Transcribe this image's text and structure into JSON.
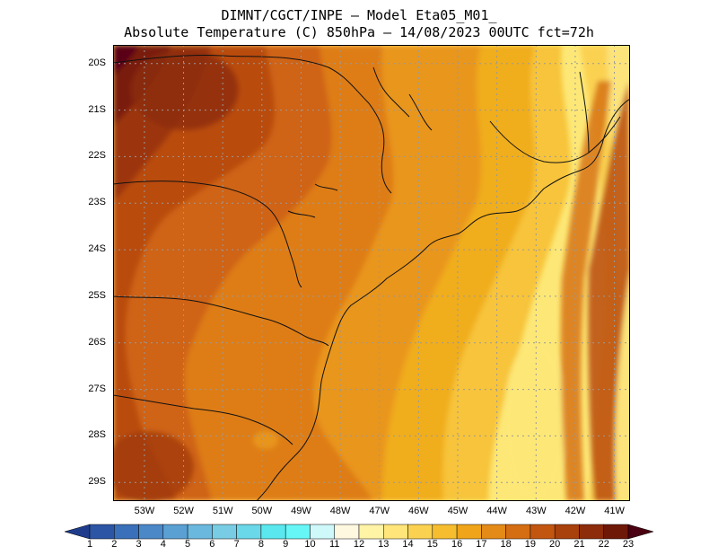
{
  "header": {
    "line1": "DIMNT/CGCT/INPE –  Model Eta05_M01_",
    "line2": "Absolute Temperature (C) 850hPa –  14/08/2023 00UTC fct=72h"
  },
  "map": {
    "lon_range": [
      -53.8,
      -40.6
    ],
    "lat_range": [
      -29.4,
      -19.6
    ],
    "lat_ticks": [
      "20S",
      "21S",
      "22S",
      "23S",
      "24S",
      "25S",
      "26S",
      "27S",
      "28S",
      "29S"
    ],
    "lat_values": [
      -20,
      -21,
      -22,
      -23,
      -24,
      -25,
      -26,
      -27,
      -28,
      -29
    ],
    "lon_ticks": [
      "53W",
      "52W",
      "51W",
      "50W",
      "49W",
      "48W",
      "47W",
      "46W",
      "45W",
      "44W",
      "43W",
      "42W",
      "41W"
    ],
    "lon_values": [
      -53,
      -52,
      -51,
      -50,
      -49,
      -48,
      -47,
      -46,
      -45,
      -44,
      -43,
      -42,
      -41
    ]
  },
  "colorbar": {
    "labels": [
      "1",
      "2",
      "3",
      "4",
      "5",
      "6",
      "7",
      "8",
      "9",
      "10",
      "11",
      "12",
      "13",
      "14",
      "15",
      "16",
      "17",
      "18",
      "19",
      "20",
      "21",
      "22",
      "23"
    ],
    "colors": [
      "#1f3c8c",
      "#2c55a5",
      "#3a6fb9",
      "#4a88c8",
      "#5aa0d3",
      "#6ab8dd",
      "#78cce3",
      "#6ad8e8",
      "#5ae8ee",
      "#66f6f6",
      "#cff8fb",
      "#fff8e0",
      "#fff3a6",
      "#ffe57a",
      "#fbd151",
      "#f6bd2f",
      "#efa41a",
      "#e48a17",
      "#d56d13",
      "#c25610",
      "#a9410c",
      "#8c2c0a",
      "#6e1808",
      "#4a0010"
    ]
  }
}
